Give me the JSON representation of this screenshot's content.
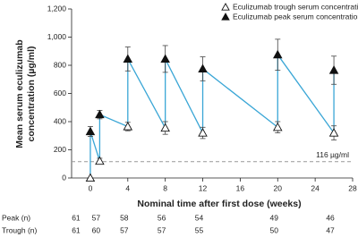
{
  "chart_data": {
    "type": "line",
    "ylabel": [
      "Mean serum eculizumab",
      "concentration (µg/ml)"
    ],
    "xlabel": "Nominal time after first dose (weeks)",
    "x": [
      0,
      1,
      4,
      8,
      12,
      20,
      26
    ],
    "series": [
      {
        "name": "Eculizumab trough serum concentration",
        "marker": "open",
        "values": [
          0,
          120,
          365,
          355,
          320,
          360,
          320
        ],
        "errors": [
          0,
          20,
          30,
          45,
          40,
          40,
          50
        ]
      },
      {
        "name": "Eculizumab peak serum concentration",
        "marker": "filled",
        "values": [
          330,
          450,
          845,
          845,
          775,
          875,
          765
        ],
        "errors": [
          35,
          30,
          85,
          95,
          85,
          110,
          100
        ]
      }
    ],
    "line_color": "#3aa6d6",
    "xlim": [
      -2,
      28
    ],
    "xticks": [
      0,
      4,
      8,
      12,
      16,
      20,
      24,
      28
    ],
    "ylim": [
      0,
      1200
    ],
    "yticks": [
      0,
      200,
      400,
      600,
      800,
      {
        "value": 1000,
        "label": "1,000"
      },
      {
        "value": 1200,
        "label": "1,200"
      }
    ],
    "reference_line": {
      "value": 116,
      "label": "116 µg/ml",
      "color": "#999999"
    },
    "n_table": [
      {
        "label": "Peak (n)",
        "values": [
          61,
          57,
          58,
          56,
          54,
          49,
          46
        ]
      },
      {
        "label": "Trough (n)",
        "values": [
          61,
          60,
          57,
          57,
          55,
          50,
          47
        ]
      }
    ]
  }
}
